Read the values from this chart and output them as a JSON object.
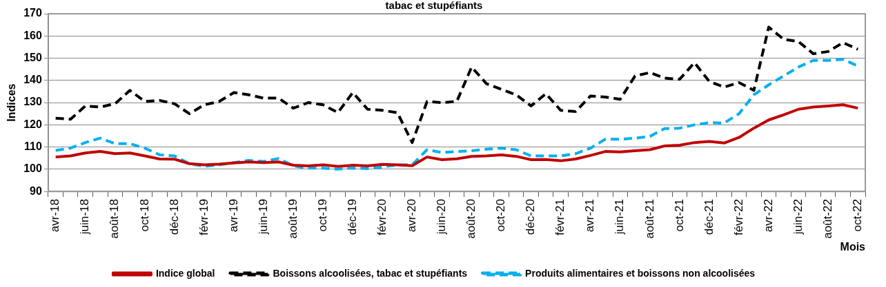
{
  "chart_data": {
    "type": "line",
    "title": "tabac et stupéfiants",
    "xlabel": "Mois",
    "ylabel": "Indices",
    "categories": [
      "avr-18",
      null,
      "juin-18",
      null,
      "août-18",
      null,
      "oct-18",
      null,
      "déc-18",
      null,
      "févr-19",
      null,
      "avr-19",
      null,
      "juin-19",
      null,
      "août-19",
      null,
      "oct-19",
      null,
      "déc-19",
      null,
      "févr-20",
      null,
      "avr-20",
      null,
      "juin-20",
      null,
      "août-20",
      null,
      "oct-20",
      null,
      "déc-20",
      null,
      "févr-21",
      null,
      "avr-21",
      null,
      "juin-21",
      null,
      "août-21",
      null,
      "oct-21",
      null,
      "déc-21",
      null,
      "févr-22",
      null,
      "avr-22",
      null,
      "juin-22",
      null,
      "août-22",
      null,
      "oct-22"
    ],
    "series": [
      {
        "name": "Indice global",
        "color": "#c00000",
        "line_style": "solid",
        "values": [
          105.5,
          106,
          107.3,
          108,
          107,
          107.3,
          106,
          104.6,
          104.5,
          102.5,
          102,
          102.3,
          102.8,
          103.3,
          103,
          103.3,
          101.8,
          101.5,
          102,
          101.3,
          101.8,
          101.5,
          102.2,
          102,
          101.6,
          105.5,
          104.3,
          104.7,
          105.8,
          106,
          106.5,
          105.8,
          104.3,
          104.4,
          103.8,
          104.6,
          106.2,
          108,
          107.8,
          108.3,
          108.8,
          110.5,
          110.8,
          112,
          112.5,
          111.8,
          114.3,
          118.5,
          122.2,
          124.5,
          127,
          128,
          128.5,
          129,
          127.5
        ]
      },
      {
        "name": "Boissons alcoolisées, tabac et stupéfiants",
        "color": "#000000",
        "line_style": "dashed",
        "values": [
          123,
          122.5,
          128.5,
          128,
          129.5,
          135.5,
          130.5,
          131,
          129.5,
          125,
          129,
          130.5,
          134.5,
          133.5,
          132,
          132,
          127.5,
          130,
          129,
          125.5,
          134.5,
          127,
          126.5,
          125.5,
          112,
          130.5,
          130,
          130.5,
          146,
          138.5,
          136,
          133.5,
          128.5,
          134,
          126.5,
          126,
          133,
          132.5,
          131.5,
          142,
          143.5,
          141,
          140.5,
          148,
          139.5,
          137,
          139,
          135.5,
          164,
          158.5,
          157.5,
          152,
          153,
          157,
          154
        ]
      },
      {
        "name": "Produits alimentaires et boissons non alcoolisées",
        "color": "#00b0f0",
        "line_style": "dashed",
        "values": [
          108.5,
          109.5,
          112,
          114,
          111.5,
          111.5,
          109.5,
          106.5,
          106,
          102.5,
          101.3,
          102,
          103,
          104,
          103.5,
          104.8,
          101.5,
          100.5,
          100.5,
          100,
          100.5,
          100.3,
          101,
          102,
          102,
          108.8,
          107.5,
          108,
          108.3,
          109,
          109.5,
          108.8,
          106,
          106,
          106,
          107,
          109.5,
          113.5,
          113.5,
          114,
          114.8,
          118.3,
          118.5,
          120,
          121,
          120.8,
          125,
          133.5,
          138,
          142,
          146,
          149,
          149,
          149.5,
          146.5
        ]
      }
    ],
    "ylim": [
      90,
      170
    ],
    "yticks": [
      90,
      100,
      110,
      120,
      130,
      140,
      150,
      160,
      170
    ],
    "grid": "y",
    "legend": "bottom",
    "marker": "none"
  }
}
